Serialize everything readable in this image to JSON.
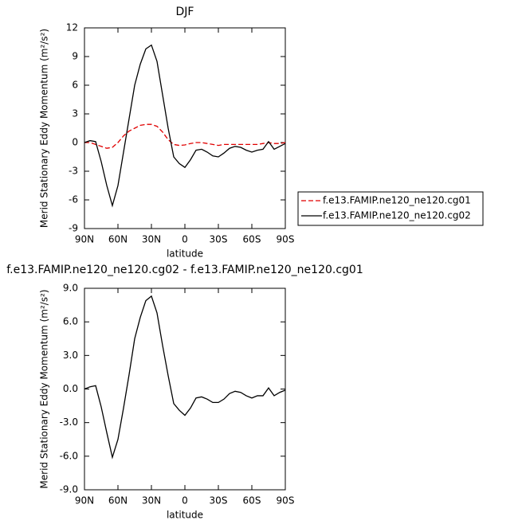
{
  "chart_data": [
    {
      "type": "line",
      "title": "DJF",
      "xlabel": "latitude",
      "ylabel": "Merid Stationary Eddy Momentum (m²/s²)",
      "x": [
        90,
        85,
        80,
        75,
        70,
        65,
        60,
        55,
        50,
        45,
        40,
        35,
        30,
        25,
        20,
        15,
        10,
        5,
        0,
        -5,
        -10,
        -15,
        -20,
        -25,
        -30,
        -35,
        -40,
        -45,
        -50,
        -55,
        -60,
        -65,
        -70,
        -75,
        -80,
        -85,
        -90
      ],
      "series": [
        {
          "name": "f.e13.FAMIP.ne120_ne120.cg01",
          "color": "#e00000",
          "dashed": true,
          "values": [
            0,
            0,
            -0.2,
            -0.4,
            -0.6,
            -0.5,
            0,
            0.7,
            1.2,
            1.5,
            1.8,
            1.9,
            1.9,
            1.7,
            1.1,
            0.3,
            -0.2,
            -0.3,
            -0.25,
            -0.1,
            0,
            0,
            -0.1,
            -0.2,
            -0.3,
            -0.2,
            -0.2,
            -0.2,
            -0.2,
            -0.2,
            -0.2,
            -0.2,
            -0.1,
            0,
            -0.1,
            -0.1,
            0
          ]
        },
        {
          "name": "f.e13.FAMIP.ne120_ne120.cg02",
          "color": "#000000",
          "values": [
            0,
            0.2,
            0.1,
            -2,
            -4.5,
            -6.6,
            -4.5,
            -1,
            2.5,
            6,
            8.2,
            9.8,
            10.2,
            8.5,
            5,
            1.5,
            -1.5,
            -2.2,
            -2.6,
            -1.8,
            -0.8,
            -0.7,
            -1,
            -1.4,
            -1.5,
            -1.1,
            -0.6,
            -0.4,
            -0.5,
            -0.8,
            -1,
            -0.8,
            -0.7,
            0.1,
            -0.7,
            -0.4,
            -0.1
          ]
        }
      ],
      "xlim": [
        90,
        -90
      ],
      "xticks": [
        {
          "value": 90,
          "label": "90N"
        },
        {
          "value": 60,
          "label": "60N"
        },
        {
          "value": 30,
          "label": "30N"
        },
        0,
        {
          "value": -30,
          "label": "30S"
        },
        {
          "value": -60,
          "label": "60S"
        },
        {
          "value": -90,
          "label": "90S"
        }
      ],
      "ylim": [
        -9,
        12
      ],
      "yticks": [
        -9,
        -6,
        -3,
        0,
        3,
        6,
        9,
        12
      ],
      "legend": "right"
    },
    {
      "type": "line",
      "title": "f.e13.FAMIP.ne120_ne120.cg02 - f.e13.FAMIP.ne120_ne120.cg01",
      "xlabel": "latitude",
      "ylabel": "Merid Stationary Eddy Momentum (m²/s²)",
      "x": [
        90,
        85,
        80,
        75,
        70,
        65,
        60,
        55,
        50,
        45,
        40,
        35,
        30,
        25,
        20,
        15,
        10,
        5,
        0,
        -5,
        -10,
        -15,
        -20,
        -25,
        -30,
        -35,
        -40,
        -45,
        -50,
        -55,
        -60,
        -65,
        -70,
        -75,
        -80,
        -85,
        -90
      ],
      "series": [
        {
          "color": "#000000",
          "values": [
            0,
            0.2,
            0.3,
            -1.6,
            -3.9,
            -6.1,
            -4.5,
            -1.7,
            1.3,
            4.5,
            6.4,
            7.9,
            8.3,
            6.8,
            3.9,
            1.2,
            -1.3,
            -1.9,
            -2.35,
            -1.7,
            -0.8,
            -0.7,
            -0.9,
            -1.2,
            -1.2,
            -0.9,
            -0.4,
            -0.2,
            -0.3,
            -0.6,
            -0.8,
            -0.6,
            -0.6,
            0.1,
            -0.6,
            -0.3,
            -0.1
          ]
        }
      ],
      "xlim": [
        90,
        -90
      ],
      "xticks": [
        {
          "value": 90,
          "label": "90N"
        },
        {
          "value": 60,
          "label": "60N"
        },
        {
          "value": 30,
          "label": "30N"
        },
        0,
        {
          "value": -30,
          "label": "30S"
        },
        {
          "value": -60,
          "label": "60S"
        },
        {
          "value": -90,
          "label": "90S"
        }
      ],
      "ylim": [
        -9,
        9
      ],
      "yticks": [
        {
          "value": -9,
          "label": "-9.0"
        },
        {
          "value": -6,
          "label": "-6.0"
        },
        {
          "value": -3,
          "label": "-3.0"
        },
        {
          "value": 0,
          "label": "0.0"
        },
        {
          "value": 3,
          "label": "3.0"
        },
        {
          "value": 6,
          "label": "6.0"
        },
        {
          "value": 9,
          "label": "9.0"
        }
      ]
    }
  ]
}
